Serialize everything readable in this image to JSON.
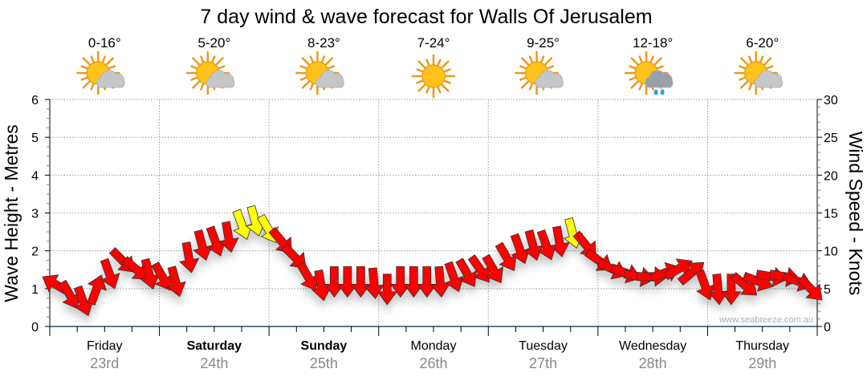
{
  "chart_data": {
    "type": "scatter",
    "title": "7 day wind & wave forecast for Walls Of Jerusalem",
    "ylabel_left": "Wave Height - Metres",
    "ylabel_right": "Wind Speed - Knots",
    "ylim_left": [
      0,
      6
    ],
    "ylim_right": [
      0,
      30
    ],
    "yticks_left": [
      "0",
      "1",
      "2",
      "3",
      "4",
      "5",
      "6"
    ],
    "yticks_right": [
      "0",
      "5",
      "10",
      "15",
      "20",
      "25",
      "30"
    ],
    "grid": true,
    "watermark": "www.seabreeze.com.au",
    "days": [
      {
        "name": "Friday",
        "date": "23rd",
        "bold": false,
        "temp": "0-16°",
        "icon": "sun-cloud-icon"
      },
      {
        "name": "Saturday",
        "date": "24th",
        "bold": true,
        "temp": "5-20°",
        "icon": "sun-cloud-icon"
      },
      {
        "name": "Sunday",
        "date": "25th",
        "bold": true,
        "temp": "8-23°",
        "icon": "sun-cloud-icon"
      },
      {
        "name": "Monday",
        "date": "26th",
        "bold": false,
        "temp": "7-24°",
        "icon": "sun-icon"
      },
      {
        "name": "Tuesday",
        "date": "27th",
        "bold": false,
        "temp": "9-25°",
        "icon": "sun-cloud-icon"
      },
      {
        "name": "Wednesday",
        "date": "28th",
        "bold": false,
        "temp": "12-18°",
        "icon": "rain-cloud-icon"
      },
      {
        "name": "Thursday",
        "date": "29th",
        "bold": false,
        "temp": "6-20°",
        "icon": "sun-cloud-icon"
      }
    ],
    "wind_interval_hours": 3,
    "wind_knots": [
      5.5,
      4.2,
      3.4,
      4.8,
      7,
      8.7,
      7.6,
      7,
      6.6,
      6,
      9.2,
      10.8,
      11.3,
      11.9,
      13.5,
      14,
      12.9,
      11.3,
      9.2,
      6.6,
      5.5,
      6,
      6,
      6,
      5.8,
      5,
      6,
      6,
      6,
      6,
      6.6,
      7.1,
      7.6,
      7.6,
      9.2,
      10.3,
      10.8,
      10.8,
      11.3,
      12.4,
      10.8,
      8.7,
      7.6,
      7.1,
      6.6,
      6.6,
      7.1,
      7.6,
      7.1,
      5.5,
      5,
      5,
      5.5,
      6,
      6.6,
      6.6,
      6,
      5
    ],
    "wind_direction_deg": [
      300,
      150,
      160,
      20,
      160,
      135,
      130,
      165,
      150,
      165,
      170,
      165,
      160,
      170,
      160,
      165,
      150,
      140,
      135,
      150,
      170,
      180,
      180,
      180,
      175,
      180,
      180,
      180,
      180,
      175,
      160,
      150,
      145,
      150,
      150,
      160,
      165,
      160,
      170,
      165,
      140,
      125,
      115,
      110,
      100,
      90,
      70,
      60,
      50,
      160,
      175,
      180,
      130,
      110,
      100,
      100,
      110,
      135
    ],
    "colors": {
      "light": "#ff0000",
      "moderate": "#ffff00",
      "outline": "#333333"
    },
    "moderate_threshold_knots": 12
  }
}
